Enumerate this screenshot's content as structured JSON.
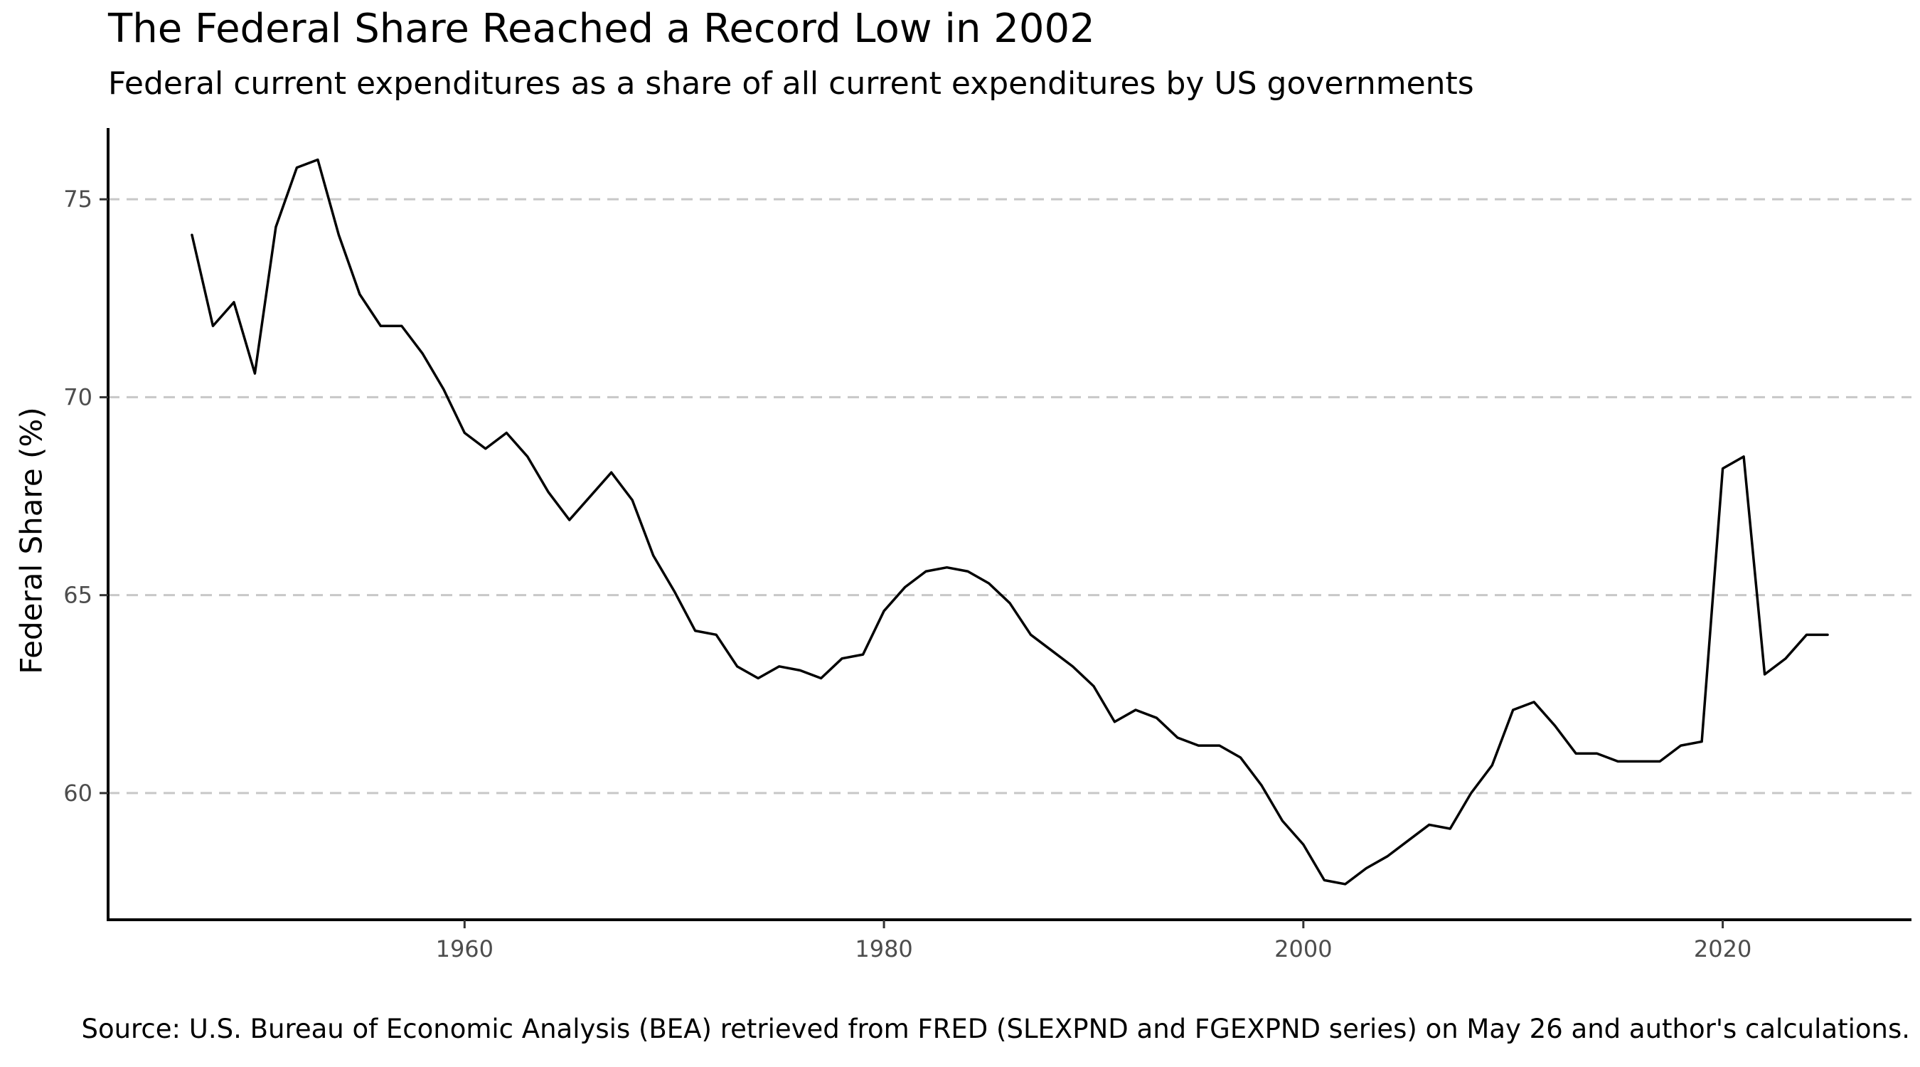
{
  "chart_data": {
    "type": "line",
    "title": "The Federal Share Reached a Record Low in 2002",
    "subtitle": "Federal current expenditures as a share of all current expenditures by US governments",
    "xlabel": "",
    "ylabel": "Federal Share (%)",
    "caption": "Source: U.S. Bureau of Economic Analysis (BEA) retrieved from FRED (SLEXPND and FGEXPND series) on May 26 and author's calculations.",
    "xlim": [
      1943,
      2029
    ],
    "ylim": [
      56.8,
      76.8
    ],
    "x_ticks": [
      1960,
      1980,
      2000,
      2020
    ],
    "x_tick_labels": [
      "1960",
      "1980",
      "2000",
      "2020"
    ],
    "y_ticks": [
      60,
      65,
      70,
      75
    ],
    "y_tick_labels": [
      "60",
      "65",
      "70",
      "75"
    ],
    "grid": "horizontal-dashed",
    "series": [
      {
        "name": "Federal Share",
        "color": "#000000",
        "x": [
          1947,
          1948,
          1949,
          1950,
          1951,
          1952,
          1953,
          1954,
          1955,
          1956,
          1957,
          1958,
          1959,
          1960,
          1961,
          1962,
          1963,
          1964,
          1965,
          1966,
          1967,
          1968,
          1969,
          1970,
          1971,
          1972,
          1973,
          1974,
          1975,
          1976,
          1977,
          1978,
          1979,
          1980,
          1981,
          1982,
          1983,
          1984,
          1985,
          1986,
          1987,
          1988,
          1989,
          1990,
          1991,
          1992,
          1993,
          1994,
          1995,
          1996,
          1997,
          1998,
          1999,
          2000,
          2001,
          2002,
          2003,
          2004,
          2005,
          2006,
          2007,
          2008,
          2009,
          2010,
          2011,
          2012,
          2013,
          2014,
          2015,
          2016,
          2017,
          2018,
          2019,
          2020,
          2021,
          2022,
          2023,
          2024,
          2025
        ],
        "values": [
          74.1,
          71.8,
          72.4,
          70.6,
          74.3,
          75.8,
          76.0,
          74.1,
          72.6,
          71.8,
          71.8,
          71.1,
          70.2,
          69.1,
          68.7,
          69.1,
          68.5,
          67.6,
          66.9,
          67.5,
          68.1,
          67.4,
          66.0,
          65.1,
          64.1,
          64.0,
          63.2,
          62.9,
          63.2,
          63.1,
          62.9,
          63.4,
          63.5,
          64.6,
          65.2,
          65.6,
          65.7,
          65.6,
          65.3,
          64.8,
          64.0,
          63.6,
          63.2,
          62.7,
          61.8,
          62.1,
          61.9,
          61.4,
          61.2,
          61.2,
          60.9,
          60.2,
          59.3,
          58.7,
          57.8,
          57.7,
          58.1,
          58.4,
          58.8,
          59.2,
          59.1,
          60.0,
          60.7,
          62.1,
          62.3,
          61.7,
          61.0,
          61.0,
          60.8,
          60.8,
          60.8,
          61.2,
          61.3,
          68.2,
          68.5,
          63.0,
          63.4,
          64.0,
          64.0
        ]
      }
    ]
  }
}
